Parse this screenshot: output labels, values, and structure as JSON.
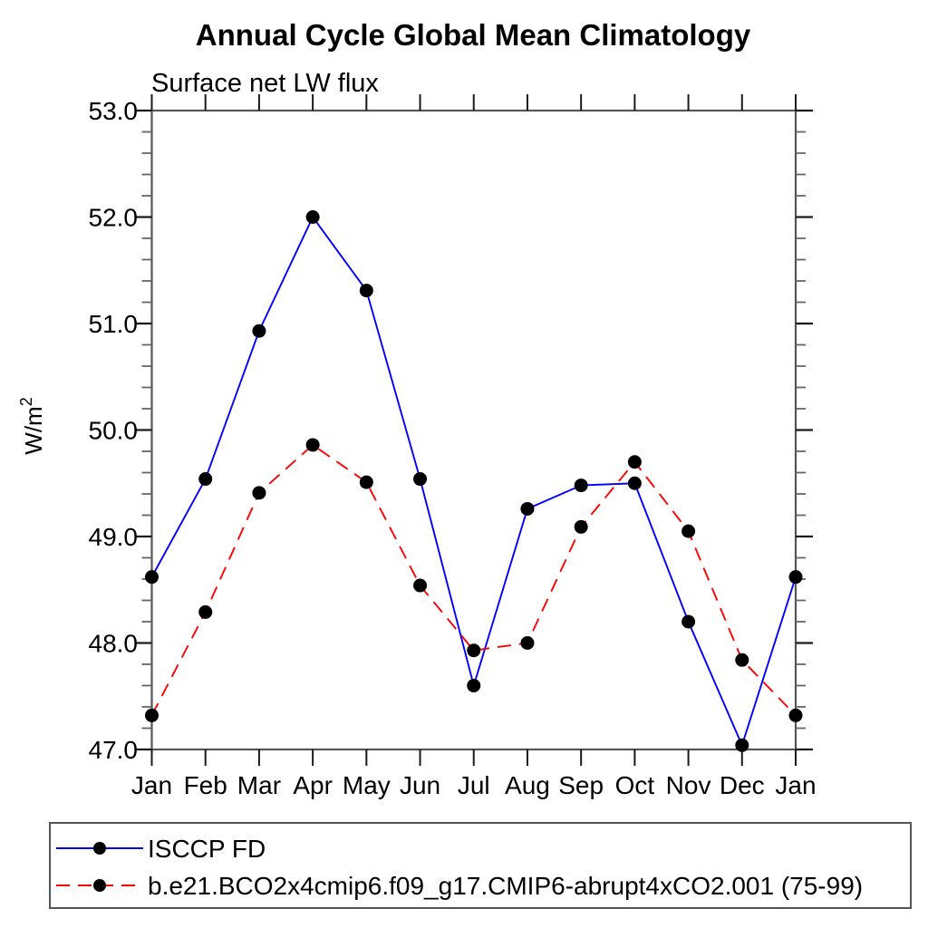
{
  "title": "Annual Cycle Global Mean Climatology",
  "subtitle": "Surface net LW flux",
  "y_axis": {
    "label_base": "W/m",
    "label_exp": "2",
    "tick_labels": [
      "53.0",
      "52.0",
      "51.0",
      "50.0",
      "49.0",
      "48.0",
      "47.0"
    ]
  },
  "x_axis": {
    "tick_labels": [
      "Jan",
      "Feb",
      "Mar",
      "Apr",
      "May",
      "Jun",
      "Jul",
      "Aug",
      "Sep",
      "Oct",
      "Nov",
      "Dec",
      "Jan"
    ]
  },
  "colors": {
    "series1": "#0000ff",
    "series2": "#ff0000",
    "marker": "#000000",
    "frame": "#555555",
    "major_tick": "#1a1a1a",
    "minor_tick": "#666666",
    "text": "#000000"
  },
  "chart_data": {
    "type": "line",
    "title": "Annual Cycle Global Mean Climatology",
    "subtitle": "Surface net LW flux",
    "ylabel": "W/m²",
    "xlabel": "",
    "categories": [
      "Jan",
      "Feb",
      "Mar",
      "Apr",
      "May",
      "Jun",
      "Jul",
      "Aug",
      "Sep",
      "Oct",
      "Nov",
      "Dec",
      "Jan"
    ],
    "series": [
      {
        "name": "ISCCP FD",
        "color": "#0000ff",
        "line_style": "solid",
        "marker": "filled-circle",
        "marker_color": "#000000",
        "values": [
          48.62,
          49.54,
          50.93,
          52.0,
          51.31,
          49.54,
          47.6,
          49.26,
          49.48,
          49.5,
          48.2,
          47.04,
          48.62
        ]
      },
      {
        "name": "b.e21.BCO2x4cmip6.f09_g17.CMIP6-abrupt4xCO2.001 (75-99)",
        "color": "#ff0000",
        "line_style": "dashed",
        "marker": "filled-circle",
        "marker_color": "#000000",
        "values": [
          47.32,
          48.29,
          49.41,
          49.86,
          49.51,
          48.54,
          47.93,
          48.0,
          49.09,
          49.7,
          49.05,
          47.84,
          47.32
        ]
      }
    ],
    "ylim": [
      47.0,
      53.0
    ],
    "ytick_major_step": 1.0,
    "ytick_minor_step": 0.2,
    "yticks": [
      47.0,
      48.0,
      49.0,
      50.0,
      51.0,
      52.0,
      53.0
    ],
    "grid": false,
    "ticks_direction": "out",
    "legend_position": "bottom-box"
  }
}
